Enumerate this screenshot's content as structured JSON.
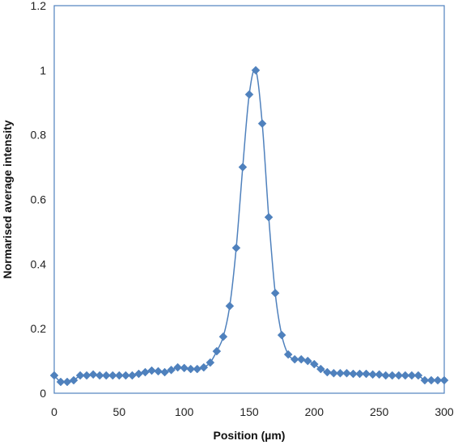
{
  "chart_data": {
    "type": "scatter",
    "title": "",
    "xlabel": "Position (µm)",
    "ylabel": "Normarised average intensity",
    "xlim": [
      0,
      300
    ],
    "ylim": [
      0,
      1.2
    ],
    "x_ticks": [
      "0",
      "50",
      "100",
      "150",
      "200",
      "250",
      "300"
    ],
    "y_ticks": [
      "0",
      "0.2",
      "0.4",
      "0.6",
      "0.8",
      "1",
      "1.2"
    ],
    "grid": false,
    "legend": "none",
    "line_color": "#4f81bd",
    "frame_color": "#4f81bd",
    "series": [
      {
        "x": [
          0,
          5,
          10,
          15,
          20,
          25,
          30,
          35,
          40,
          45,
          50,
          55,
          60,
          65,
          70,
          75,
          80,
          85,
          90,
          95,
          100,
          105,
          110,
          115,
          120,
          125,
          130,
          135,
          140,
          145,
          150,
          155,
          160,
          165,
          170,
          175,
          180,
          185,
          190,
          195,
          200,
          205,
          210,
          215,
          220,
          225,
          230,
          235,
          240,
          245,
          250,
          255,
          260,
          265,
          270,
          275,
          280,
          285,
          290,
          295,
          300
        ],
        "y": [
          0.055,
          0.035,
          0.035,
          0.04,
          0.055,
          0.055,
          0.058,
          0.055,
          0.055,
          0.055,
          0.055,
          0.055,
          0.055,
          0.06,
          0.065,
          0.07,
          0.068,
          0.065,
          0.072,
          0.08,
          0.078,
          0.075,
          0.075,
          0.08,
          0.095,
          0.13,
          0.175,
          0.27,
          0.45,
          0.7,
          0.925,
          1.0,
          0.835,
          0.545,
          0.31,
          0.18,
          0.12,
          0.105,
          0.105,
          0.1,
          0.09,
          0.075,
          0.065,
          0.062,
          0.062,
          0.062,
          0.06,
          0.06,
          0.06,
          0.058,
          0.058,
          0.055,
          0.055,
          0.055,
          0.055,
          0.055,
          0.055,
          0.04,
          0.04,
          0.04,
          0.04
        ]
      }
    ]
  }
}
